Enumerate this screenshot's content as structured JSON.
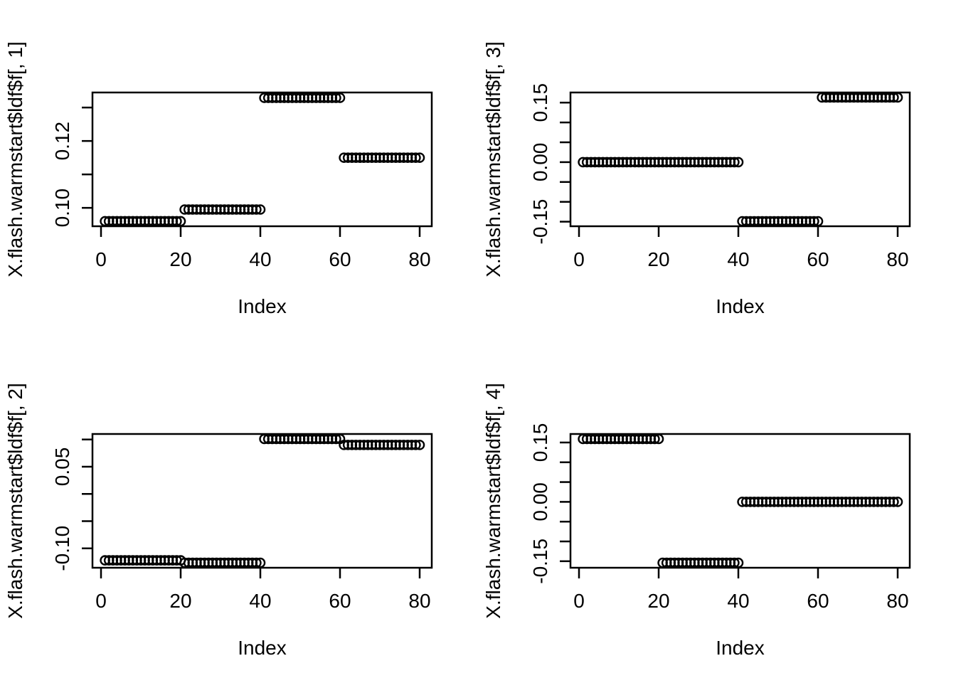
{
  "figure": {
    "background": "#ffffff",
    "stroke_color": "#000000",
    "marker": "open-circle"
  },
  "chart_data": [
    {
      "type": "scatter",
      "title": "",
      "ylabel": "X.flash.warmstart$ldf$f[, 1]",
      "xlabel": "Index",
      "xlim": [
        -2.2,
        83.3
      ],
      "ylim": [
        0.0945,
        0.1345
      ],
      "grid": false,
      "legend": "none",
      "x_tick_values": [
        0,
        20,
        40,
        60,
        80
      ],
      "x_tick_labels": [
        "0",
        "20",
        "40",
        "60",
        "80"
      ],
      "y_ticks": [
        {
          "v": 0.13,
          "label": ""
        },
        {
          "v": 0.12,
          "label": "0.12"
        },
        {
          "v": 0.11,
          "label": ""
        },
        {
          "v": 0.1,
          "label": "0.10"
        }
      ],
      "segments": [
        {
          "from": 1,
          "to": 20,
          "value": 0.096
        },
        {
          "from": 21,
          "to": 40,
          "value": 0.0995
        },
        {
          "from": 41,
          "to": 60,
          "value": 0.1329
        },
        {
          "from": 61,
          "to": 80,
          "value": 0.115
        }
      ]
    },
    {
      "type": "scatter",
      "title": "",
      "ylabel": "X.flash.warmstart$ldf$f[, 3]",
      "xlabel": "Index",
      "xlim": [
        -2.2,
        83.3
      ],
      "ylim": [
        -0.1615,
        0.1755
      ],
      "grid": false,
      "legend": "none",
      "x_tick_values": [
        0,
        20,
        40,
        60,
        80
      ],
      "x_tick_labels": [
        "0",
        "20",
        "40",
        "60",
        "80"
      ],
      "y_ticks": [
        {
          "v": 0.15,
          "label": "0.15"
        },
        {
          "v": 0.1,
          "label": ""
        },
        {
          "v": 0.05,
          "label": ""
        },
        {
          "v": 0.0,
          "label": "0.00"
        },
        {
          "v": -0.05,
          "label": ""
        },
        {
          "v": -0.1,
          "label": ""
        },
        {
          "v": -0.15,
          "label": "-0.15"
        }
      ],
      "segments": [
        {
          "from": 1,
          "to": 40,
          "value": 0.0
        },
        {
          "from": 41,
          "to": 60,
          "value": -0.149
        },
        {
          "from": 61,
          "to": 80,
          "value": 0.163
        }
      ]
    },
    {
      "type": "scatter",
      "title": "",
      "ylabel": "X.flash.warmstart$ldf$f[, 2]",
      "xlabel": "Index",
      "xlim": [
        -2.2,
        83.3
      ],
      "ylim": [
        -0.1356,
        0.1101
      ],
      "grid": false,
      "legend": "none",
      "x_tick_values": [
        0,
        20,
        40,
        60,
        80
      ],
      "x_tick_labels": [
        "0",
        "20",
        "40",
        "60",
        "80"
      ],
      "y_ticks": [
        {
          "v": 0.1,
          "label": ""
        },
        {
          "v": 0.05,
          "label": "0.05"
        },
        {
          "v": 0.0,
          "label": ""
        },
        {
          "v": -0.05,
          "label": ""
        },
        {
          "v": -0.1,
          "label": "-0.10"
        }
      ],
      "segments": [
        {
          "from": 1,
          "to": 20,
          "value": -0.122
        },
        {
          "from": 21,
          "to": 40,
          "value": -0.1265
        },
        {
          "from": 41,
          "to": 60,
          "value": 0.101
        },
        {
          "from": 61,
          "to": 80,
          "value": 0.09
        }
      ]
    },
    {
      "type": "scatter",
      "title": "",
      "ylabel": "X.flash.warmstart$ldf$f[, 4]",
      "xlabel": "Index",
      "xlim": [
        -2.2,
        83.3
      ],
      "ylim": [
        -0.1665,
        0.1715
      ],
      "grid": false,
      "legend": "none",
      "x_tick_values": [
        0,
        20,
        40,
        60,
        80
      ],
      "x_tick_labels": [
        "0",
        "20",
        "40",
        "60",
        "80"
      ],
      "y_ticks": [
        {
          "v": 0.15,
          "label": "0.15"
        },
        {
          "v": 0.1,
          "label": ""
        },
        {
          "v": 0.05,
          "label": ""
        },
        {
          "v": 0.0,
          "label": "0.00"
        },
        {
          "v": -0.05,
          "label": ""
        },
        {
          "v": -0.1,
          "label": ""
        },
        {
          "v": -0.15,
          "label": "-0.15"
        }
      ],
      "segments": [
        {
          "from": 1,
          "to": 20,
          "value": 0.159
        },
        {
          "from": 21,
          "to": 40,
          "value": -0.154
        },
        {
          "from": 41,
          "to": 80,
          "value": 0.0
        }
      ]
    }
  ]
}
